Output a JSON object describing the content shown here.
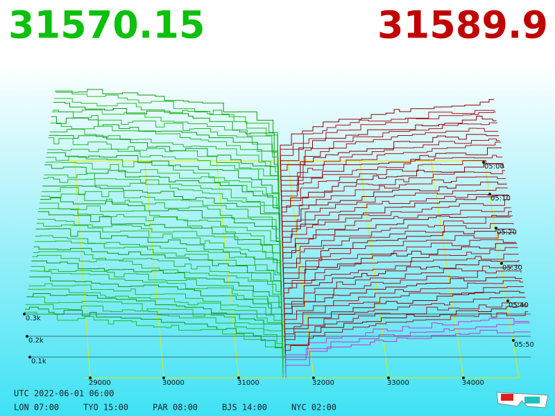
{
  "header": {
    "bid_price": "31570.15",
    "ask_price": "31589.9"
  },
  "price_axis": {
    "ticks": [
      "29000",
      "30000",
      "31000",
      "32000",
      "33000",
      "34000"
    ]
  },
  "depth_axis": {
    "ticks": [
      "0.3k",
      "0.2k",
      "0.1k"
    ]
  },
  "time_axis": {
    "ticks": [
      "05:00",
      "05:10",
      "05:20",
      "05:30",
      "05:40",
      "05:50"
    ]
  },
  "clock": {
    "utc": "UTC 2022-06-01 06:00",
    "zones": [
      "LON 07:00",
      "TYO 15:00",
      "PAR 08:00",
      "BJS 14:00",
      "NYC 02:00"
    ]
  }
}
